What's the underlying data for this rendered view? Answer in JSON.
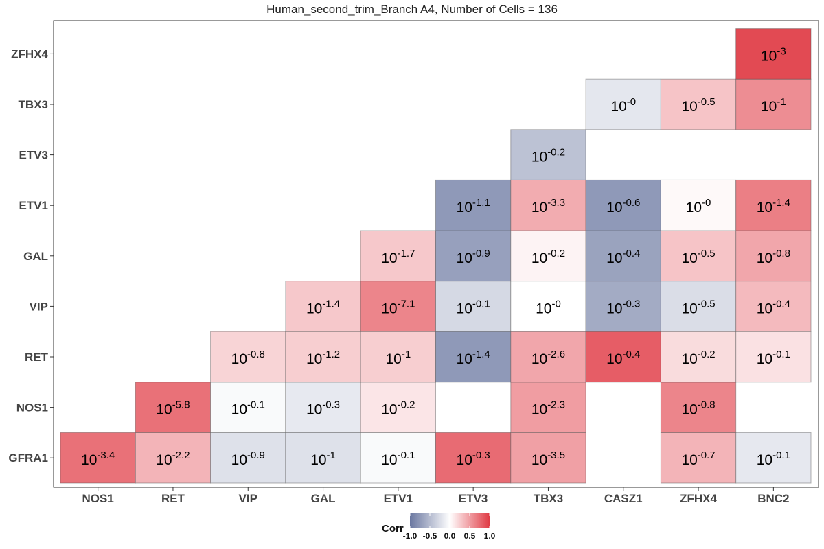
{
  "chart_data": {
    "type": "heatmap",
    "title": "Human_second_trim_Branch A4, Number of Cells = 136",
    "x_categories": [
      "NOS1",
      "RET",
      "VIP",
      "GAL",
      "ETV1",
      "ETV3",
      "TBX3",
      "CASZ1",
      "ZFHX4",
      "BNC2"
    ],
    "y_categories": [
      "GFRA1",
      "NOS1",
      "RET",
      "VIP",
      "GAL",
      "ETV1",
      "ETV3",
      "TBX3",
      "ZFHX4"
    ],
    "cells": [
      {
        "x": "NOS1",
        "y": "GFRA1",
        "corr": 0.72,
        "base": "10",
        "exp": "-3.4"
      },
      {
        "x": "RET",
        "y": "GFRA1",
        "corr": 0.38,
        "base": "10",
        "exp": "-2.2"
      },
      {
        "x": "VIP",
        "y": "GFRA1",
        "corr": -0.22,
        "base": "10",
        "exp": "-0.9"
      },
      {
        "x": "GAL",
        "y": "GFRA1",
        "corr": -0.22,
        "base": "10",
        "exp": "-1"
      },
      {
        "x": "ETV1",
        "y": "GFRA1",
        "corr": -0.04,
        "base": "10",
        "exp": "-0.1"
      },
      {
        "x": "ETV3",
        "y": "GFRA1",
        "corr": 0.75,
        "base": "10",
        "exp": "-0.3"
      },
      {
        "x": "TBX3",
        "y": "GFRA1",
        "corr": 0.48,
        "base": "10",
        "exp": "-3.5"
      },
      {
        "x": "ZFHX4",
        "y": "GFRA1",
        "corr": 0.38,
        "base": "10",
        "exp": "-0.7"
      },
      {
        "x": "BNC2",
        "y": "GFRA1",
        "corr": -0.17,
        "base": "10",
        "exp": "-0.1"
      },
      {
        "x": "RET",
        "y": "NOS1",
        "corr": 0.72,
        "base": "10",
        "exp": "-5.8"
      },
      {
        "x": "VIP",
        "y": "NOS1",
        "corr": -0.04,
        "base": "10",
        "exp": "-0.1"
      },
      {
        "x": "GAL",
        "y": "NOS1",
        "corr": -0.16,
        "base": "10",
        "exp": "-0.3"
      },
      {
        "x": "ETV1",
        "y": "NOS1",
        "corr": 0.13,
        "base": "10",
        "exp": "-0.2"
      },
      {
        "x": "TBX3",
        "y": "NOS1",
        "corr": 0.5,
        "base": "10",
        "exp": "-2.3"
      },
      {
        "x": "ZFHX4",
        "y": "NOS1",
        "corr": 0.62,
        "base": "10",
        "exp": "-0.8"
      },
      {
        "x": "VIP",
        "y": "RET",
        "corr": 0.22,
        "base": "10",
        "exp": "-0.8"
      },
      {
        "x": "GAL",
        "y": "RET",
        "corr": 0.25,
        "base": "10",
        "exp": "-1.2"
      },
      {
        "x": "ETV1",
        "y": "RET",
        "corr": 0.25,
        "base": "10",
        "exp": "-1"
      },
      {
        "x": "ETV3",
        "y": "RET",
        "corr": -0.75,
        "base": "10",
        "exp": "-1.4"
      },
      {
        "x": "TBX3",
        "y": "RET",
        "corr": 0.45,
        "base": "10",
        "exp": "-2.6"
      },
      {
        "x": "CASZ1",
        "y": "RET",
        "corr": 0.82,
        "base": "10",
        "exp": "-0.4"
      },
      {
        "x": "ZFHX4",
        "y": "RET",
        "corr": 0.18,
        "base": "10",
        "exp": "-0.2"
      },
      {
        "x": "BNC2",
        "y": "RET",
        "corr": 0.15,
        "base": "10",
        "exp": "-0.1"
      },
      {
        "x": "GAL",
        "y": "VIP",
        "corr": 0.28,
        "base": "10",
        "exp": "-1.4"
      },
      {
        "x": "ETV1",
        "y": "VIP",
        "corr": 0.62,
        "base": "10",
        "exp": "-7.1"
      },
      {
        "x": "ETV3",
        "y": "VIP",
        "corr": -0.28,
        "base": "10",
        "exp": "-0.1"
      },
      {
        "x": "TBX3",
        "y": "VIP",
        "corr": 0.0,
        "base": "10",
        "exp": "-0"
      },
      {
        "x": "CASZ1",
        "y": "VIP",
        "corr": -0.62,
        "base": "10",
        "exp": "-0.3"
      },
      {
        "x": "ZFHX4",
        "y": "VIP",
        "corr": -0.25,
        "base": "10",
        "exp": "-0.5"
      },
      {
        "x": "BNC2",
        "y": "VIP",
        "corr": 0.35,
        "base": "10",
        "exp": "-0.4"
      },
      {
        "x": "ETV1",
        "y": "GAL",
        "corr": 0.28,
        "base": "10",
        "exp": "-1.7"
      },
      {
        "x": "ETV3",
        "y": "GAL",
        "corr": -0.7,
        "base": "10",
        "exp": "-0.9"
      },
      {
        "x": "TBX3",
        "y": "GAL",
        "corr": 0.06,
        "base": "10",
        "exp": "-0.2"
      },
      {
        "x": "CASZ1",
        "y": "GAL",
        "corr": -0.68,
        "base": "10",
        "exp": "-0.4"
      },
      {
        "x": "ZFHX4",
        "y": "GAL",
        "corr": 0.3,
        "base": "10",
        "exp": "-0.5"
      },
      {
        "x": "BNC2",
        "y": "GAL",
        "corr": 0.45,
        "base": "10",
        "exp": "-0.8"
      },
      {
        "x": "ETV3",
        "y": "ETV1",
        "corr": -0.75,
        "base": "10",
        "exp": "-1.1"
      },
      {
        "x": "TBX3",
        "y": "ETV1",
        "corr": 0.42,
        "base": "10",
        "exp": "-3.3"
      },
      {
        "x": "CASZ1",
        "y": "ETV1",
        "corr": -0.75,
        "base": "10",
        "exp": "-0.6"
      },
      {
        "x": "ZFHX4",
        "y": "ETV1",
        "corr": 0.03,
        "base": "10",
        "exp": "-0"
      },
      {
        "x": "BNC2",
        "y": "ETV1",
        "corr": 0.65,
        "base": "10",
        "exp": "-1.4"
      },
      {
        "x": "TBX3",
        "y": "ETV3",
        "corr": -0.45,
        "base": "10",
        "exp": "-0.2"
      },
      {
        "x": "CASZ1",
        "y": "TBX3",
        "corr": -0.18,
        "base": "10",
        "exp": "-0"
      },
      {
        "x": "ZFHX4",
        "y": "TBX3",
        "corr": 0.3,
        "base": "10",
        "exp": "-0.5"
      },
      {
        "x": "BNC2",
        "y": "TBX3",
        "corr": 0.58,
        "base": "10",
        "exp": "-1"
      },
      {
        "x": "BNC2",
        "y": "ZFHX4",
        "corr": 0.92,
        "base": "10",
        "exp": "-3"
      }
    ],
    "legend": {
      "title": "Corr",
      "ticks": [
        "-1.0",
        "-0.5",
        "0.0",
        "0.5",
        "1.0"
      ],
      "tick_values": [
        -1.0,
        -0.5,
        0.0,
        0.5,
        1.0
      ],
      "range": [
        -1,
        1
      ],
      "low_color": "#6a77a0",
      "mid_color": "#ffffff",
      "high_color": "#e03a44"
    },
    "grid": false
  }
}
